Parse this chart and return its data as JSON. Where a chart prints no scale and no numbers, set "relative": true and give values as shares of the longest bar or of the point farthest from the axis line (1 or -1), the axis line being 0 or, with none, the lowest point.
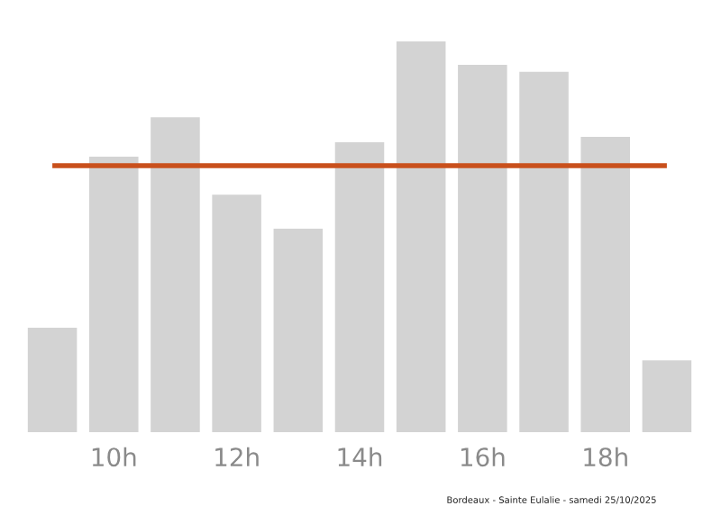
{
  "chart_data": {
    "type": "bar",
    "relative": true,
    "categories": [
      null,
      "10h",
      null,
      "12h",
      null,
      "14h",
      null,
      "16h",
      null,
      "18h",
      null
    ],
    "values": [
      0.267,
      0.705,
      0.806,
      0.608,
      0.521,
      0.742,
      1,
      0.94,
      0.922,
      0.756,
      0.184
    ],
    "color": "#d3d3d3",
    "ref_lines": [
      {
        "axis": "y",
        "value": 0.682,
        "color": "#c9501c"
      }
    ],
    "annotations": [
      "Bordeaux - Sainte Eulalie - samedi 25/10/2025"
    ],
    "grid": false,
    "legend": false
  }
}
